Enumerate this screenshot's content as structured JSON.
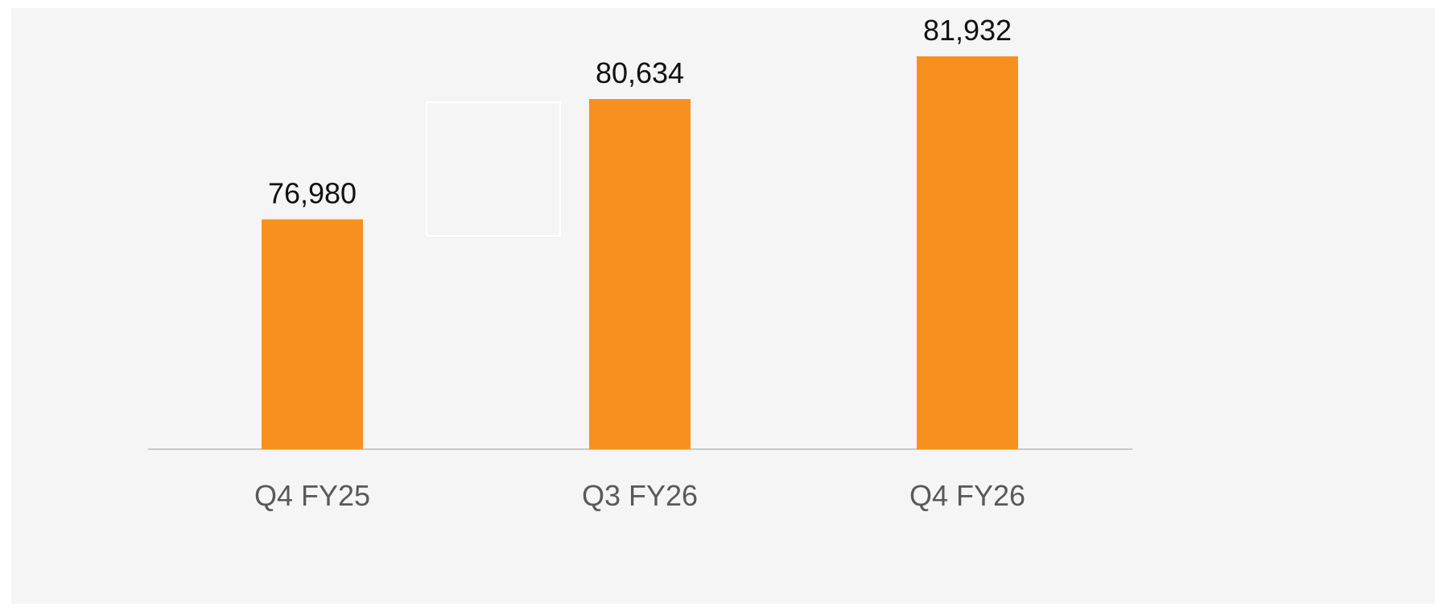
{
  "chart_data": {
    "type": "bar",
    "categories": [
      "Q4 FY25",
      "Q3 FY26",
      "Q4 FY26"
    ],
    "values": [
      76980,
      80634,
      81932
    ],
    "value_labels": [
      "76,980",
      "80,634",
      "81,932"
    ],
    "title": "",
    "xlabel": "",
    "ylabel": "",
    "ylim": [
      70000,
      83000
    ],
    "grid": false,
    "bar_color": "#f7901e",
    "axis_color": "#c8c8c8",
    "background": "#f5f5f5"
  }
}
